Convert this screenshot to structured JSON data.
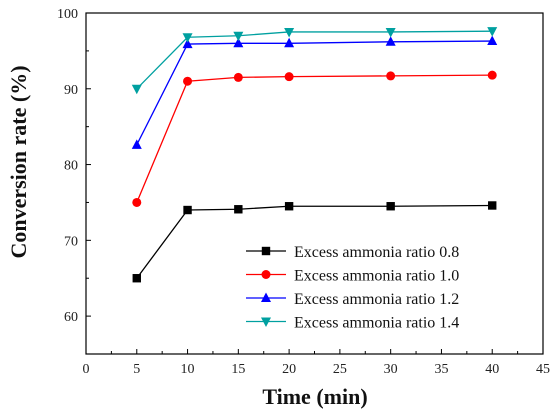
{
  "chart_data": {
    "type": "line",
    "title": "",
    "xlabel": "Time (min)",
    "ylabel": "Conversion rate (%)",
    "xlim": [
      0,
      45
    ],
    "ylim": [
      55,
      100
    ],
    "xticks": [
      0,
      5,
      10,
      15,
      20,
      25,
      30,
      35,
      40,
      45
    ],
    "yticks": [
      60,
      70,
      80,
      90,
      100
    ],
    "grid": false,
    "legend_position": "bottom-right",
    "x": [
      5,
      10,
      15,
      20,
      30,
      40
    ],
    "series": [
      {
        "name": "Excess ammonia ratio 0.8",
        "values": [
          65.0,
          74.0,
          74.1,
          74.5,
          74.5,
          74.6
        ],
        "color": "#000000",
        "marker": "square"
      },
      {
        "name": "Excess ammonia ratio 1.0",
        "values": [
          75.0,
          91.0,
          91.5,
          91.6,
          91.7,
          91.8
        ],
        "color": "#ff0000",
        "marker": "circle"
      },
      {
        "name": "Excess ammonia ratio 1.2",
        "values": [
          82.6,
          95.9,
          96.0,
          96.0,
          96.2,
          96.3
        ],
        "color": "#0000ff",
        "marker": "triangle-up"
      },
      {
        "name": "Excess ammonia ratio 1.4",
        "values": [
          90.0,
          96.8,
          97.0,
          97.5,
          97.5,
          97.6
        ],
        "color": "#00a0a0",
        "marker": "triangle-down"
      }
    ]
  }
}
